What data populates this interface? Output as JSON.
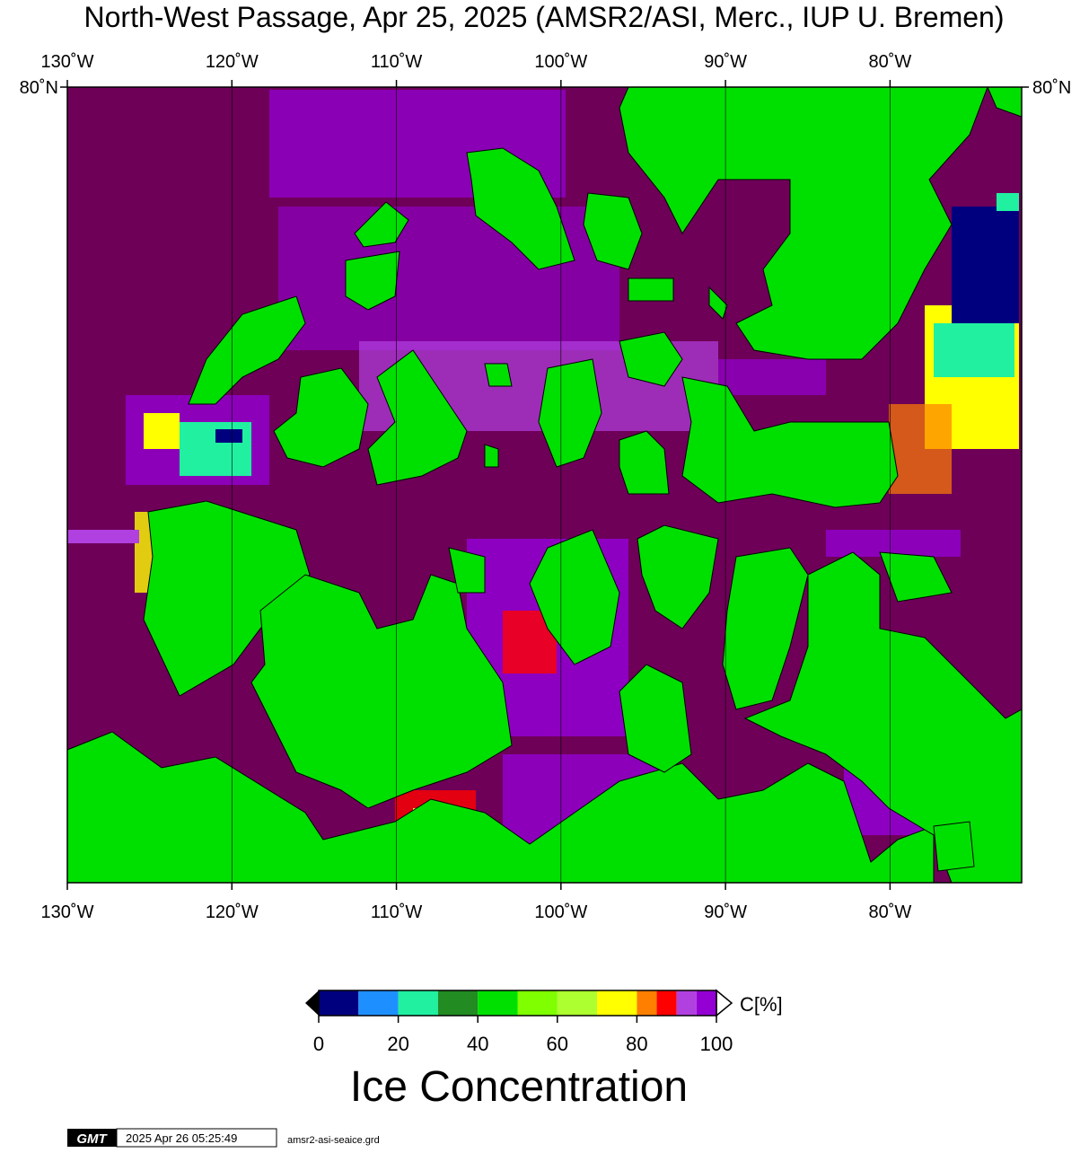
{
  "title": "North-West Passage, Apr 25, 2025 (AMSR2/ASI, Merc., IUP U. Bremen)",
  "map": {
    "xlim": [
      -130,
      -72
    ],
    "ylim": [
      67,
      80
    ],
    "lon_ticks": [
      {
        "value": -130,
        "label": "130˚W"
      },
      {
        "value": -120,
        "label": "120˚W"
      },
      {
        "value": -110,
        "label": "110˚W"
      },
      {
        "value": -100,
        "label": "100˚W"
      },
      {
        "value": -90,
        "label": "90˚W"
      },
      {
        "value": -80,
        "label": "80˚W"
      }
    ],
    "lat_ticks": [
      {
        "value": 80,
        "label": "80˚N"
      }
    ]
  },
  "colorbar": {
    "title": "Ice Concentration",
    "unit_label": "C[%]",
    "range": [
      0,
      100
    ],
    "bounds": [
      0,
      10,
      20,
      30,
      40,
      50,
      60,
      70,
      80,
      85,
      90,
      95,
      100
    ],
    "colors": [
      "#00007f",
      "#1e8fff",
      "#20f0a0",
      "#228b22",
      "#00e000",
      "#7fff00",
      "#adff2f",
      "#ffff00",
      "#ff7f00",
      "#ff0000",
      "#b040e0",
      "#9400d3"
    ],
    "ticks": [
      0,
      20,
      40,
      60,
      80,
      100
    ]
  },
  "footer": {
    "logo": "GMT",
    "timestamp": "2025 Apr 26 05:25:49",
    "file": "amsr2-asi-seaice.grd"
  }
}
